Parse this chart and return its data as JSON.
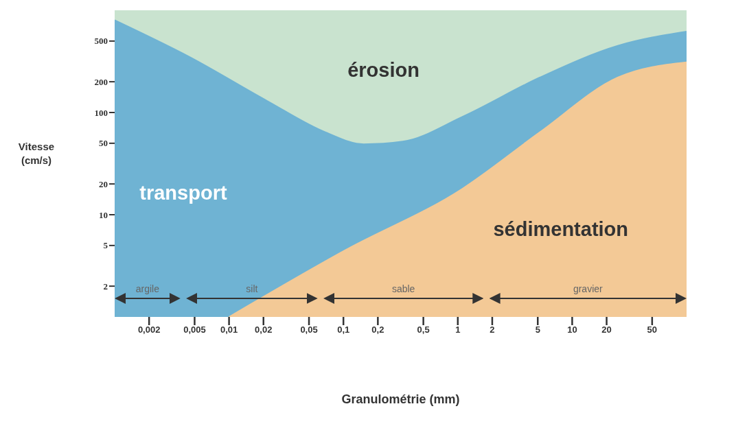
{
  "chart_data": {
    "type": "area",
    "xlabel": "Granulométrie (mm)",
    "ylabel": "Vitesse (cm/s)",
    "log": "xy",
    "xlim": [
      0.001,
      100
    ],
    "ylim": [
      1,
      1000
    ],
    "xticks": [
      {
        "value": 0.002,
        "label": "0,002"
      },
      {
        "value": 0.005,
        "label": "0,005"
      },
      {
        "value": 0.01,
        "label": "0,01"
      },
      {
        "value": 0.02,
        "label": "0,02"
      },
      {
        "value": 0.05,
        "label": "0,05"
      },
      {
        "value": 0.1,
        "label": "0,1"
      },
      {
        "value": 0.2,
        "label": "0,2"
      },
      {
        "value": 0.5,
        "label": "0,5"
      },
      1,
      2,
      5,
      10,
      20,
      50
    ],
    "yticks": [
      2,
      5,
      10,
      20,
      50,
      100,
      200,
      500
    ],
    "series": [
      {
        "color": "#6fb3d3",
        "x": [
          0.001,
          0.0045,
          0.0215,
          0.07,
          0.15,
          0.33,
          1.1,
          5.2,
          25,
          100
        ],
        "values": [
          800,
          350,
          130,
          64,
          49,
          52,
          91,
          220,
          450,
          620
        ]
      },
      {
        "color": "#f3c996",
        "x": [
          0.01,
          0.1,
          1.1,
          5.2,
          25,
          100
        ],
        "values": [
          1,
          4.4,
          18,
          64,
          220,
          310
        ]
      }
    ],
    "bands": [
      {
        "axis": "y",
        "from": 1,
        "to": 1000,
        "color": "#c9e3cf"
      }
    ],
    "annotations": [
      "érosion",
      "transport",
      "sédimentation",
      "argile",
      "silt",
      "sable",
      "gravier"
    ]
  }
}
